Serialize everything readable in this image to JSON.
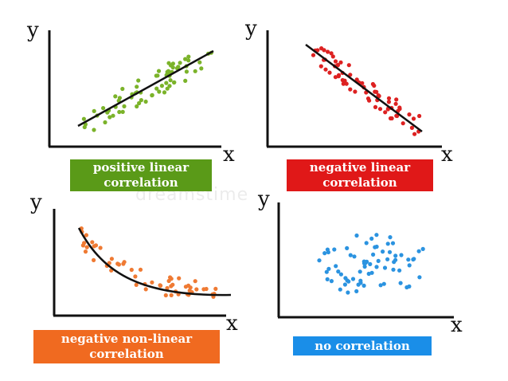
{
  "panels": [
    {
      "id": "positive-linear",
      "label_line1": "positive linear",
      "label_line2": "correlation",
      "label_color": "#5a9a18",
      "dot_color": "#7bb32a",
      "x_axis_label": "x",
      "y_axis_label": "y",
      "trend": "line-up"
    },
    {
      "id": "negative-linear",
      "label_line1": "negative linear",
      "label_line2": "correlation",
      "label_color": "#e01818",
      "dot_color": "#dd2121",
      "x_axis_label": "x",
      "y_axis_label": "y",
      "trend": "line-down"
    },
    {
      "id": "negative-nonlinear",
      "label_line1": "negative non-linear",
      "label_line2": "correlation",
      "label_color": "#f06a20",
      "dot_color": "#ef7a33",
      "x_axis_label": "x",
      "y_axis_label": "y",
      "trend": "curve-down"
    },
    {
      "id": "no-correlation",
      "label_line1": "no correlation",
      "label_line2": "",
      "label_color": "#1a8ee8",
      "dot_color": "#2b93e0",
      "x_axis_label": "x",
      "y_axis_label": "y",
      "trend": "none"
    }
  ],
  "watermark": "dreamstime"
}
